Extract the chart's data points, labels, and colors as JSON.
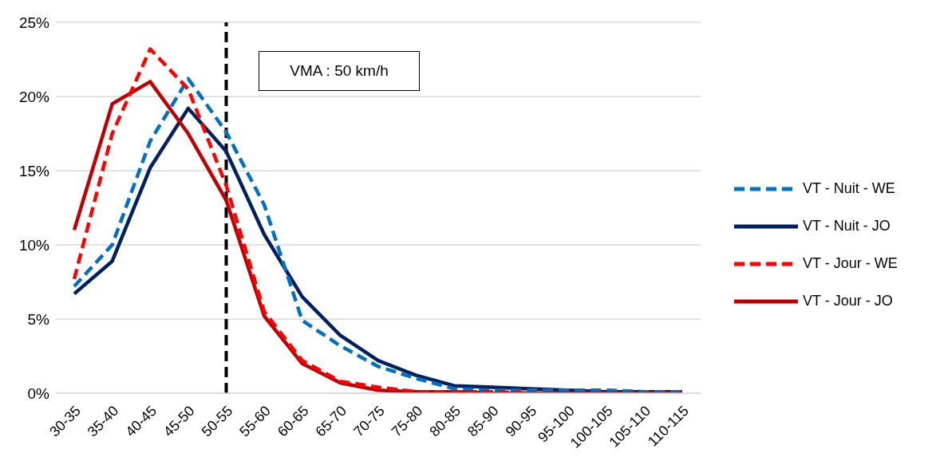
{
  "chart_data": {
    "type": "line",
    "categories": [
      "30-35",
      "35-40",
      "40-45",
      "45-50",
      "50-55",
      "55-60",
      "60-65",
      "65-70",
      "70-75",
      "75-80",
      "80-85",
      "85-90",
      "90-95",
      "95-100",
      "100-105",
      "105-110",
      "110-115"
    ],
    "series": [
      {
        "name": "VT - Nuit - WE",
        "color": "#0070c0",
        "line_style": "dashed",
        "values": [
          7.2,
          10,
          17,
          21.2,
          17.6,
          12.7,
          4.9,
          3.2,
          1.8,
          1.0,
          0.3,
          0.2,
          0.2,
          0.2,
          0.2,
          0.1,
          0.1
        ]
      },
      {
        "name": "VT - Nuit - JO",
        "color": "#002060",
        "line_style": "solid",
        "values": [
          6.7,
          8.9,
          15.2,
          19.2,
          16.3,
          10.7,
          6.5,
          3.9,
          2.2,
          1.2,
          0.5,
          0.4,
          0.3,
          0.2,
          0.1,
          0.1,
          0.1
        ]
      },
      {
        "name": "VT - Jour - WE",
        "color": "#ff0000",
        "line_style": "dashed",
        "values": [
          7.7,
          17.5,
          23.2,
          20.5,
          14,
          5.5,
          2.2,
          0.8,
          0.4,
          0.1,
          0.1,
          0.1,
          0,
          0,
          0,
          0,
          0
        ]
      },
      {
        "name": "VT - Jour - JO",
        "color": "#c00000",
        "line_style": "solid",
        "values": [
          11,
          19.5,
          21,
          17.5,
          13,
          5.2,
          2,
          0.7,
          0.2,
          0.1,
          0.1,
          0,
          0,
          0,
          0,
          0,
          0
        ]
      }
    ],
    "ylim": [
      0,
      25
    ],
    "yticks": [
      {
        "value": 0,
        "label": "0%"
      },
      {
        "value": 5,
        "label": "5%"
      },
      {
        "value": 10,
        "label": "10%"
      },
      {
        "value": 15,
        "label": "15%"
      },
      {
        "value": 20,
        "label": "20%"
      },
      {
        "value": 25,
        "label": "25%"
      }
    ],
    "grid": "y",
    "legend": "right",
    "marker": "none",
    "ref_lines": [
      {
        "axis": "x",
        "value": "50-55",
        "color": "#000000",
        "line_style": "dashed"
      }
    ],
    "annotations": [
      "VMA : 50 km/h"
    ]
  }
}
